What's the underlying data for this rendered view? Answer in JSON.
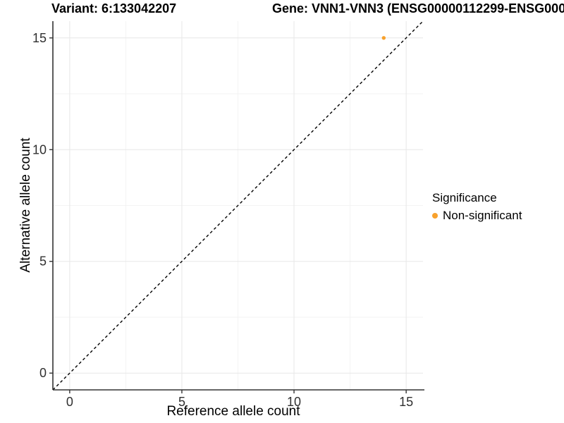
{
  "titles": {
    "variant": "Variant: 6:133042207",
    "gene": "Gene: VNN1-VNN3 (ENSG00000112299-ENSG000"
  },
  "axes": {
    "x_label": "Reference allele count",
    "y_label": "Alternative allele count"
  },
  "legend": {
    "title": "Significance",
    "items": [
      {
        "label": "Non-significant",
        "color": "#F8A12C"
      }
    ]
  },
  "colors": {
    "point": "#F8A12C",
    "axis_line": "#333333",
    "tick_label": "#303030",
    "grid_major": "#E7E7E7",
    "grid_minor": "#F3F3F3",
    "reference_line": "#000000",
    "background": "#FFFFFF"
  },
  "chart_data": {
    "type": "scatter",
    "title": "Variant: 6:133042207 — Gene: VNN1-VNN3 (ENSG00000112299-ENSG000…)",
    "xlabel": "Reference allele count",
    "ylabel": "Alternative allele count",
    "xlim": [
      -0.75,
      15.75
    ],
    "ylim": [
      -0.75,
      15.75
    ],
    "x_ticks": [
      0,
      5,
      10,
      15
    ],
    "y_ticks": [
      0,
      5,
      10,
      15
    ],
    "x_minor_ticks": [
      2.5,
      7.5,
      12.5
    ],
    "y_minor_ticks": [
      2.5,
      7.5,
      12.5
    ],
    "grid": true,
    "legend_position": "right",
    "series": [
      {
        "name": "Non-significant",
        "color": "#F8A12C",
        "points": [
          {
            "x": 14,
            "y": 15
          }
        ]
      }
    ],
    "reference_line": {
      "kind": "identity",
      "style": "dashed",
      "color": "#000000"
    }
  }
}
